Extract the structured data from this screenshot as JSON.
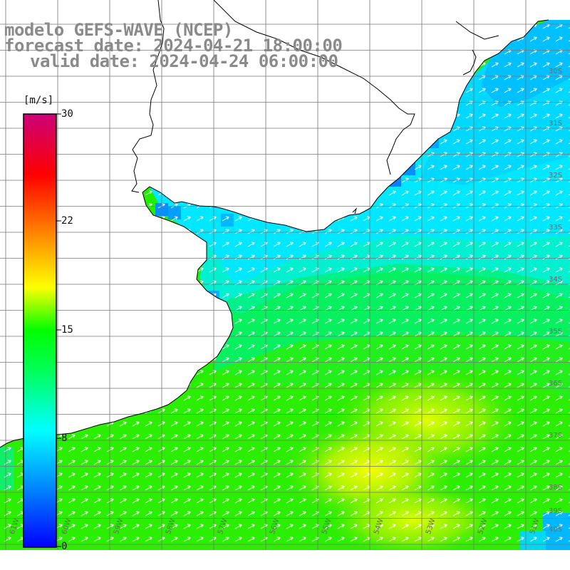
{
  "title": {
    "line1": "modelo GEFS-WAVE (NCEP)",
    "line2": "forecast date: 2024-04-21 18:00:00",
    "line3": "valid date: 2024-04-24 06:00:00"
  },
  "colorbar": {
    "unit": "[m/s]",
    "ticks": [
      "30",
      "22",
      "15",
      "8",
      "0"
    ],
    "tick_values": [
      30,
      22,
      15,
      8,
      0
    ],
    "min": 0,
    "max": 30,
    "colors": [
      "#0000ff",
      "#00aaff",
      "#00ffff",
      "#00ff00",
      "#ffff00",
      "#ff8000",
      "#ff0000",
      "#cc0077"
    ]
  },
  "map": {
    "quantity": "wind speed",
    "unit": "m/s",
    "arrow_color": "#ffffff",
    "land_color": "#ffffff",
    "coast_color": "#000000",
    "grid_color": "#777777",
    "lat_labels": [
      "30S",
      "31S",
      "32S",
      "33S",
      "34S",
      "35S",
      "36S",
      "37S",
      "38S",
      "39S",
      "40S"
    ],
    "lon_labels": [
      "61W",
      "60W",
      "59W",
      "58W",
      "57W",
      "56W",
      "55W",
      "54W",
      "53W",
      "52W",
      "51W"
    ],
    "wind_direction": "from southwest (arrows pointing northeast)",
    "max_region_speed_ms": 16,
    "coastal_speed_ms": 8
  }
}
